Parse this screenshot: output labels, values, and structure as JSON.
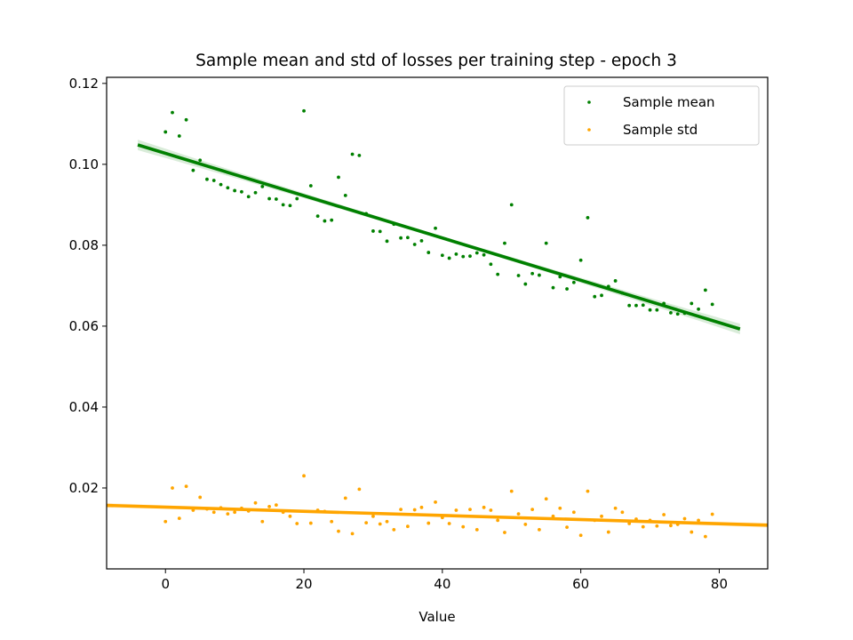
{
  "chart_data": {
    "type": "scatter",
    "title": "Sample mean and std of losses per training step - epoch 3",
    "xlabel": "Value",
    "ylabel": "",
    "xlim": [
      -8.5,
      87
    ],
    "ylim": [
      0.0,
      0.1215
    ],
    "xticks": [
      0,
      20,
      40,
      60,
      80
    ],
    "xtick_labels": [
      "0",
      "20",
      "40",
      "60",
      "80"
    ],
    "yticks": [
      0.02,
      0.04,
      0.06,
      0.08,
      0.1,
      0.12
    ],
    "ytick_labels": [
      "0.02",
      "0.04",
      "0.06",
      "0.08",
      "0.10",
      "0.12"
    ],
    "grid": false,
    "legend_position": "upper right",
    "series": [
      {
        "name": "Sample mean",
        "color": "#008000",
        "marker": "dot",
        "x": [
          0,
          1,
          2,
          3,
          4,
          5,
          6,
          7,
          8,
          9,
          10,
          11,
          12,
          13,
          14,
          15,
          16,
          17,
          18,
          19,
          20,
          21,
          22,
          23,
          24,
          25,
          26,
          27,
          28,
          29,
          30,
          31,
          32,
          33,
          34,
          35,
          36,
          37,
          38,
          39,
          40,
          41,
          42,
          43,
          44,
          45,
          46,
          47,
          48,
          49,
          50,
          51,
          52,
          53,
          54,
          55,
          56,
          57,
          58,
          59,
          60,
          61,
          62,
          63,
          64,
          65,
          66,
          67,
          68,
          69,
          70,
          71,
          72,
          73,
          74,
          75,
          76,
          77,
          78,
          79
        ],
        "y": [
          0.108,
          0.1128,
          0.107,
          0.111,
          0.0985,
          0.101,
          0.0963,
          0.096,
          0.095,
          0.0942,
          0.0935,
          0.0932,
          0.092,
          0.093,
          0.0945,
          0.0915,
          0.0914,
          0.09,
          0.0898,
          0.0915,
          0.1132,
          0.0947,
          0.0872,
          0.086,
          0.0862,
          0.0968,
          0.0923,
          0.1025,
          0.1022,
          0.0878,
          0.0835,
          0.0834,
          0.081,
          0.0852,
          0.0818,
          0.0819,
          0.0802,
          0.0811,
          0.0782,
          0.0842,
          0.0775,
          0.0768,
          0.0778,
          0.0772,
          0.0773,
          0.0781,
          0.0776,
          0.0753,
          0.0728,
          0.0805,
          0.09,
          0.0725,
          0.0704,
          0.073,
          0.0726,
          0.0805,
          0.0695,
          0.0722,
          0.0692,
          0.0708,
          0.0763,
          0.0868,
          0.0673,
          0.0676,
          0.0698,
          0.0712,
          0.0682,
          0.0651,
          0.0651,
          0.0652,
          0.064,
          0.064,
          0.0656,
          0.0633,
          0.063,
          0.0632,
          0.0656,
          0.0642,
          0.0689,
          0.0654
        ]
      },
      {
        "name": "Sample std",
        "color": "#FFA500",
        "marker": "dot",
        "x": [
          0,
          1,
          2,
          3,
          4,
          5,
          6,
          7,
          8,
          9,
          10,
          11,
          12,
          13,
          14,
          15,
          16,
          17,
          18,
          19,
          20,
          21,
          22,
          23,
          24,
          25,
          26,
          27,
          28,
          29,
          30,
          31,
          32,
          33,
          34,
          35,
          36,
          37,
          38,
          39,
          40,
          41,
          42,
          43,
          44,
          45,
          46,
          47,
          48,
          49,
          50,
          51,
          52,
          53,
          54,
          55,
          56,
          57,
          58,
          59,
          60,
          61,
          62,
          63,
          64,
          65,
          66,
          67,
          68,
          69,
          70,
          71,
          72,
          73,
          74,
          75,
          76,
          77,
          78,
          79
        ],
        "y": [
          0.0117,
          0.02,
          0.0125,
          0.0204,
          0.0145,
          0.0177,
          0.0148,
          0.014,
          0.0151,
          0.0136,
          0.014,
          0.015,
          0.0143,
          0.0163,
          0.0117,
          0.0154,
          0.0158,
          0.014,
          0.013,
          0.0112,
          0.023,
          0.0113,
          0.0145,
          0.0142,
          0.0117,
          0.0093,
          0.0175,
          0.0087,
          0.0197,
          0.0114,
          0.013,
          0.0111,
          0.0117,
          0.0097,
          0.0147,
          0.0105,
          0.0146,
          0.0152,
          0.0113,
          0.0165,
          0.0127,
          0.0112,
          0.0145,
          0.0104,
          0.0147,
          0.0097,
          0.0152,
          0.0145,
          0.012,
          0.009,
          0.0192,
          0.0136,
          0.011,
          0.0147,
          0.0097,
          0.0173,
          0.013,
          0.015,
          0.0103,
          0.014,
          0.0083,
          0.0192,
          0.012,
          0.013,
          0.0091,
          0.015,
          0.014,
          0.0112,
          0.0123,
          0.0104,
          0.012,
          0.0106,
          0.0134,
          0.0107,
          0.011,
          0.0124,
          0.0091,
          0.012,
          0.008,
          0.0135
        ]
      }
    ],
    "regression_lines": [
      {
        "series": "Sample mean",
        "color": "#008000",
        "x": [
          -4,
          83
        ],
        "y": [
          0.1048,
          0.0593
        ],
        "ci_halfwidth_ends": 0.0013,
        "ci_halfwidth_mid": 0.00045
      },
      {
        "series": "Sample std",
        "color": "#FFA500",
        "x": [
          -8.5,
          87
        ],
        "y": [
          0.0157,
          0.0108
        ],
        "ci_halfwidth_ends": 0.0006,
        "ci_halfwidth_mid": 0.0002
      }
    ]
  }
}
